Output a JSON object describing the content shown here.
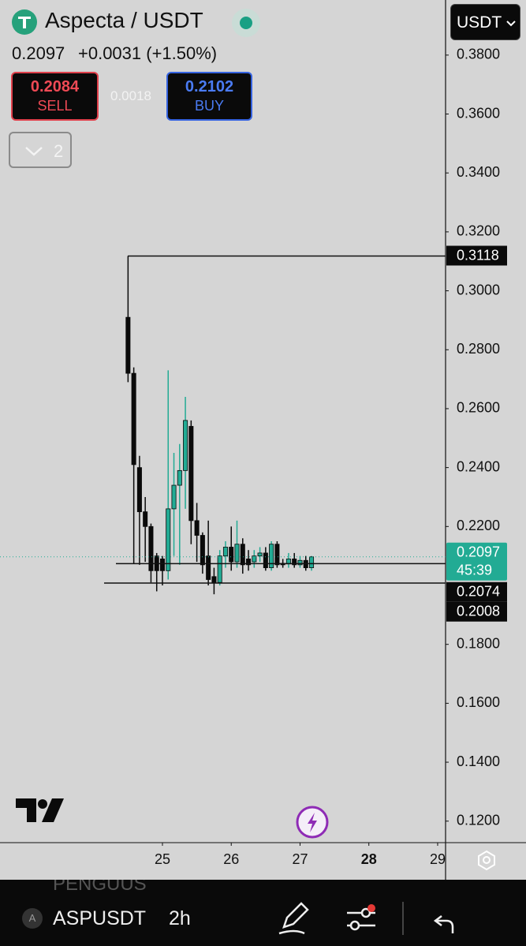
{
  "header": {
    "symbol": "Aspecta / USDT",
    "price": "0.2097",
    "change": "+0.0031 (+1.50%)",
    "sell_price": "0.2084",
    "sell_label": "SELL",
    "spread": "0.0018",
    "buy_price": "0.2102",
    "buy_label": "BUY",
    "indicators": "2",
    "currency": "USDT"
  },
  "chart_data": {
    "type": "candlestick",
    "x": [
      24.5,
      24.5833,
      24.6667,
      24.75,
      24.8333,
      24.9167,
      25,
      25.0833,
      25.1667,
      25.25,
      25.3333,
      25.4167,
      25.5,
      25.5833,
      25.6667,
      25.75,
      25.8333,
      25.9167,
      26,
      26.0833,
      26.1667,
      26.25,
      26.3333,
      26.4167,
      26.5,
      26.5833,
      26.6667,
      26.75,
      26.8333,
      26.9167,
      27,
      27.0833,
      27.1667
    ],
    "open": [
      0.291,
      0.272,
      0.24,
      0.225,
      0.22,
      0.21,
      0.209,
      0.205,
      0.226,
      0.234,
      0.239,
      0.254,
      0.222,
      0.217,
      0.21,
      0.203,
      0.201,
      0.21,
      0.213,
      0.208,
      0.214,
      0.209,
      0.208,
      0.21,
      0.211,
      0.206,
      0.214,
      0.2075,
      0.2073,
      0.209,
      0.207,
      0.2085,
      0.206
    ],
    "high": [
      0.3118,
      0.274,
      0.244,
      0.23,
      0.221,
      0.211,
      0.21,
      0.273,
      0.245,
      0.248,
      0.264,
      0.256,
      0.228,
      0.218,
      0.222,
      0.206,
      0.212,
      0.215,
      0.22,
      0.222,
      0.216,
      0.212,
      0.212,
      0.213,
      0.213,
      0.215,
      0.215,
      0.209,
      0.211,
      0.211,
      0.21,
      0.21,
      0.21
    ],
    "low": [
      0.269,
      0.2073,
      0.207,
      0.208,
      0.201,
      0.198,
      0.2,
      0.202,
      0.21,
      0.207,
      0.226,
      0.214,
      0.208,
      0.204,
      0.2,
      0.197,
      0.2,
      0.206,
      0.205,
      0.206,
      0.204,
      0.205,
      0.206,
      0.208,
      0.205,
      0.205,
      0.206,
      0.206,
      0.206,
      0.206,
      0.206,
      0.205,
      0.205
    ],
    "close": [
      0.272,
      0.241,
      0.225,
      0.22,
      0.205,
      0.205,
      0.205,
      0.226,
      0.234,
      0.239,
      0.256,
      0.222,
      0.217,
      0.207,
      0.202,
      0.201,
      0.21,
      0.213,
      0.208,
      0.214,
      0.207,
      0.207,
      0.21,
      0.211,
      0.206,
      0.214,
      0.207,
      0.207,
      0.209,
      0.207,
      0.2085,
      0.206,
      0.2097
    ],
    "up_color": "#22ab94",
    "down_color": "#0a0a0a",
    "xlim": [
      22.639,
      29.115
    ],
    "xticks": [
      25,
      26,
      27,
      28,
      29
    ],
    "bold_xtick": 28,
    "ylim": [
      0.1127,
      0.3987
    ],
    "yticks": [
      {
        "value": 0.38,
        "label": "0.3800"
      },
      {
        "value": 0.36,
        "label": "0.3600"
      },
      {
        "value": 0.34,
        "label": "0.3400"
      },
      {
        "value": 0.32,
        "label": "0.3200"
      },
      {
        "value": 0.3,
        "label": "0.3000"
      },
      {
        "value": 0.28,
        "label": "0.2800"
      },
      {
        "value": 0.26,
        "label": "0.2600"
      },
      {
        "value": 0.24,
        "label": "0.2400"
      },
      {
        "value": 0.22,
        "label": "0.2200"
      },
      {
        "value": 0.18,
        "label": "0.1800"
      },
      {
        "value": 0.16,
        "label": "0.1600"
      },
      {
        "value": 0.14,
        "label": "0.1400"
      },
      {
        "value": 0.12,
        "label": "0.1200"
      }
    ],
    "price_lines": [
      0.3118,
      0.2074,
      0.2008
    ],
    "current": {
      "value": 0.2097,
      "countdown": "45:39",
      "color": "#22ab94"
    }
  },
  "bottom": {
    "icon": "A",
    "symbol": "ASPUSDT",
    "interval": "2h",
    "behind": "PENGUUS"
  }
}
